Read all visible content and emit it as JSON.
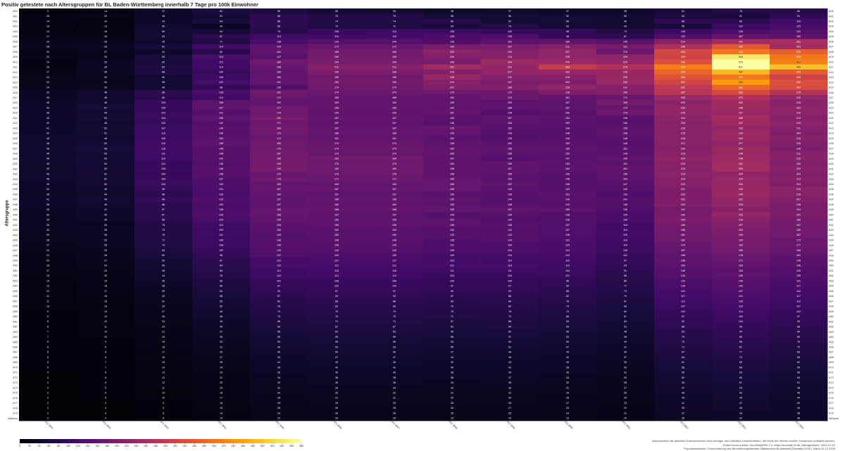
{
  "chart_data": {
    "type": "heatmap",
    "title": "Positiv getestete nach Altersgruppen für BL Baden-Württemberg innerhalb 7 Tage pro 100k Einwohner",
    "ylabel": "Altersgruppe",
    "xlabel": "",
    "columns": [
      "2021 W41",
      "2021 W42",
      "2021 W43",
      "2021 W44",
      "2021 W45",
      "2021 W46",
      "2021 W47",
      "2021 W48",
      "2021 W49",
      "2021 W50",
      "2021 W51",
      "2021 W52",
      "2022 W01",
      "2022 W02"
    ],
    "rows": [
      "A00",
      "A01",
      "A02",
      "A03",
      "A04",
      "A05",
      "A06",
      "A07",
      "A08",
      "A09",
      "A10",
      "A11",
      "A12",
      "A13",
      "A14",
      "A15",
      "A16",
      "A17",
      "A18",
      "A19",
      "A20",
      "A21",
      "A22",
      "A23",
      "A24",
      "A25",
      "A26",
      "A27",
      "A28",
      "A29",
      "A30",
      "A31",
      "A32",
      "A33",
      "A34",
      "A35",
      "A36",
      "A37",
      "A38",
      "A39",
      "A40",
      "A41",
      "A42",
      "A43",
      "A44",
      "A45",
      "A46",
      "A47",
      "A48",
      "A49",
      "A50",
      "A51",
      "A52",
      "A53",
      "A54",
      "A55",
      "A56",
      "A57",
      "A58",
      "A59",
      "A60",
      "A61",
      "A62",
      "A63",
      "A64",
      "A65",
      "A66",
      "A67",
      "A68",
      "A69",
      "A70",
      "A71",
      "A72",
      "A73",
      "A74",
      "A75",
      "A76",
      "A77",
      "A78",
      "A79",
      "A80plus"
    ],
    "values": [
      [
        9,
        14,
        37,
        62,
        65,
        55,
        49,
        38,
        47,
        37,
        38,
        61,
        76,
        80
      ],
      [
        18,
        22,
        38,
        51,
        86,
        75,
        75,
        56,
        56,
        52,
        55,
        64,
        61,
        91
      ],
      [
        14,
        14,
        43,
        64,
        88,
        74,
        74,
        80,
        52,
        56,
        46,
        88,
        89,
        116
      ],
      [
        16,
        13,
        50,
        34,
        89,
        70,
        70,
        63,
        74,
        53,
        49,
        58,
        107,
        125
      ],
      [
        13,
        16,
        50,
        54,
        79,
        106,
        113,
        108,
        100,
        96,
        74,
        108,
        125,
        141
      ],
      [
        17,
        16,
        53,
        87,
        112,
        115,
        115,
        128,
        135,
        98,
        87,
        132,
        167,
        155
      ],
      [
        24,
        26,
        45,
        77,
        128,
        144,
        144,
        136,
        151,
        160,
        145,
        214,
        251,
        261
      ],
      [
        28,
        33,
        61,
        114,
        154,
        172,
        172,
        194,
        197,
        211,
        191,
        266,
        355,
        253
      ],
      [
        20,
        27,
        41,
        82,
        161,
        185,
        185,
        220,
        209,
        227,
        173,
        325,
        405,
        370
      ],
      [
        22,
        25,
        59,
        124,
        147,
        190,
        190,
        206,
        214,
        228,
        225,
        319,
        546,
        403
      ],
      [
        14,
        33,
        60,
        113,
        180,
        194,
        194,
        196,
        244,
        240,
        233,
        345,
        579,
        417
      ],
      [
        16,
        34,
        64,
        114,
        168,
        211,
        211,
        251,
        231,
        303,
        274,
        413,
        621,
        495
      ],
      [
        17,
        35,
        68,
        100,
        160,
        199,
        199,
        213,
        227,
        233,
        239,
        378,
        487,
        364
      ],
      [
        24,
        30,
        50,
        106,
        160,
        180,
        180,
        235,
        211,
        215,
        239,
        349,
        401,
        318
      ],
      [
        24,
        30,
        55,
        122,
        161,
        190,
        190,
        213,
        197,
        202,
        240,
        321,
        454,
        342
      ],
      [
        24,
        30,
        49,
        98,
        139,
        179,
        179,
        207,
        208,
        229,
        211,
        292,
        381,
        337
      ],
      [
        34,
        48,
        88,
        128,
        181,
        174,
        174,
        179,
        179,
        198,
        209,
        287,
        332,
        279
      ],
      [
        35,
        48,
        82,
        113,
        170,
        165,
        165,
        162,
        174,
        161,
        171,
        238,
        270,
        232
      ],
      [
        36,
        46,
        103,
        155,
        162,
        163,
        163,
        159,
        153,
        157,
        189,
        220,
        250,
        216
      ],
      [
        43,
        57,
        100,
        157,
        177,
        166,
        166,
        160,
        158,
        157,
        173,
        233,
        248,
        223
      ],
      [
        38,
        49,
        101,
        141,
        179,
        159,
        159,
        167,
        139,
        150,
        179,
        229,
        237,
        219
      ],
      [
        43,
        53,
        104,
        156,
        191,
        167,
        167,
        153,
        157,
        154,
        146,
        224,
        256,
        213
      ],
      [
        42,
        48,
        102,
        141,
        171,
        157,
        157,
        146,
        154,
        153,
        146,
        216,
        247,
        219
      ],
      [
        41,
        53,
        107,
        149,
        184,
        167,
        167,
        170,
        150,
        146,
        155,
        218,
        233,
        211
      ],
      [
        42,
        51,
        110,
        146,
        179,
        166,
        166,
        159,
        143,
        148,
        158,
        215,
        240,
        204
      ],
      [
        46,
        48,
        109,
        152,
        172,
        161,
        161,
        152,
        139,
        146,
        148,
        218,
        244,
        215
      ],
      [
        45,
        53,
        115,
        155,
        180,
        170,
        170,
        156,
        151,
        152,
        148,
        217,
        227,
        205
      ],
      [
        48,
        58,
        118,
        148,
        176,
        174,
        174,
        162,
        156,
        155,
        151,
        209,
        244,
        196
      ],
      [
        45,
        53,
        111,
        148,
        187,
        170,
        170,
        165,
        155,
        152,
        149,
        218,
        238,
        211
      ],
      [
        48,
        53,
        110,
        142,
        186,
        183,
        183,
        157,
        144,
        147,
        160,
        224,
        246,
        216
      ],
      [
        45,
        54,
        101,
        138,
        190,
        176,
        176,
        159,
        159,
        153,
        151,
        218,
        251,
        205
      ],
      [
        43,
        53,
        105,
        146,
        190,
        180,
        180,
        158,
        157,
        154,
        162,
        215,
        254,
        215
      ],
      [
        45,
        51,
        100,
        148,
        170,
        176,
        176,
        158,
        155,
        146,
        156,
        219,
        229,
        204
      ],
      [
        48,
        51,
        103,
        137,
        178,
        171,
        171,
        165,
        150,
        148,
        153,
        213,
        234,
        213
      ],
      [
        39,
        50,
        104,
        132,
        163,
        163,
        163,
        166,
        157,
        145,
        147,
        213,
        234,
        203
      ],
      [
        42,
        46,
        95,
        131,
        167,
        167,
        167,
        166,
        149,
        143,
        140,
        201,
        239,
        219
      ],
      [
        36,
        44,
        88,
        126,
        160,
        157,
        157,
        150,
        146,
        151,
        133,
        203,
        240,
        215
      ],
      [
        41,
        49,
        98,
        133,
        157,
        166,
        166,
        155,
        144,
        149,
        141,
        202,
        232,
        207
      ],
      [
        38,
        45,
        88,
        130,
        157,
        162,
        162,
        153,
        148,
        142,
        138,
        204,
        226,
        198
      ],
      [
        35,
        41,
        87,
        128,
        165,
        168,
        168,
        159,
        157,
        155,
        135,
        191,
        213,
        194
      ],
      [
        32,
        40,
        87,
        133,
        165,
        157,
        157,
        144,
        145,
        138,
        129,
        192,
        233,
        201
      ],
      [
        34,
        36,
        86,
        124,
        159,
        155,
        155,
        151,
        139,
        138,
        126,
        199,
        216,
        188
      ],
      [
        30,
        34,
        75,
        114,
        153,
        158,
        158,
        155,
        145,
        137,
        118,
        189,
        207,
        187
      ],
      [
        33,
        35,
        73,
        109,
        153,
        150,
        150,
        140,
        141,
        137,
        113,
        186,
        203,
        186
      ],
      [
        30,
        35,
        76,
        111,
        143,
        152,
        152,
        143,
        143,
        136,
        120,
        181,
        195,
        187
      ],
      [
        28,
        33,
        71,
        108,
        148,
        148,
        148,
        135,
        144,
        131,
        114,
        181,
        193,
        173
      ],
      [
        27,
        33,
        70,
        108,
        146,
        145,
        145,
        131,
        129,
        125,
        110,
        170,
        193,
        177
      ],
      [
        24,
        29,
        64,
        102,
        139,
        140,
        140,
        135,
        134,
        124,
        105,
        167,
        185,
        168
      ],
      [
        21,
        28,
        60,
        96,
        137,
        132,
        132,
        120,
        119,
        122,
        101,
        156,
        176,
        161
      ],
      [
        20,
        27,
        52,
        87,
        122,
        127,
        127,
        123,
        114,
        115,
        97,
        158,
        171,
        149
      ],
      [
        18,
        24,
        50,
        84,
        120,
        121,
        121,
        121,
        119,
        110,
        93,
        153,
        163,
        146
      ],
      [
        17,
        23,
        48,
        80,
        112,
        118,
        118,
        111,
        111,
        104,
        91,
        148,
        153,
        139
      ],
      [
        15,
        20,
        44,
        76,
        110,
        114,
        114,
        104,
        104,
        101,
        86,
        144,
        156,
        138
      ],
      [
        14,
        19,
        40,
        69,
        101,
        106,
        106,
        100,
        100,
        96,
        80,
        132,
        146,
        131
      ],
      [
        13,
        18,
        38,
        66,
        97,
        102,
        102,
        97,
        97,
        90,
        77,
        128,
        142,
        127
      ],
      [
        12,
        17,
        35,
        62,
        92,
        97,
        97,
        92,
        92,
        86,
        74,
        121,
        137,
        122
      ],
      [
        11,
        16,
        33,
        58,
        87,
        93,
        93,
        87,
        88,
        82,
        70,
        117,
        131,
        117
      ],
      [
        11,
        15,
        31,
        55,
        82,
        88,
        88,
        83,
        84,
        78,
        67,
        112,
        125,
        112
      ],
      [
        10,
        14,
        29,
        52,
        78,
        83,
        83,
        79,
        80,
        74,
        63,
        107,
        120,
        107
      ],
      [
        9,
        13,
        27,
        48,
        74,
        79,
        79,
        75,
        76,
        70,
        60,
        102,
        114,
        102
      ],
      [
        9,
        13,
        26,
        46,
        70,
        75,
        75,
        71,
        72,
        66,
        57,
        97,
        109,
        97
      ],
      [
        8,
        12,
        24,
        43,
        66,
        71,
        71,
        67,
        68,
        63,
        54,
        92,
        104,
        93
      ],
      [
        8,
        11,
        23,
        40,
        62,
        67,
        67,
        63,
        64,
        59,
        51,
        88,
        99,
        88
      ],
      [
        7,
        10,
        21,
        37,
        58,
        63,
        63,
        59,
        60,
        56,
        48,
        83,
        94,
        84
      ],
      [
        7,
        10,
        20,
        35,
        55,
        59,
        59,
        56,
        57,
        53,
        46,
        79,
        89,
        80
      ],
      [
        6,
        9,
        19,
        33,
        52,
        56,
        56,
        53,
        54,
        50,
        43,
        75,
        85,
        76
      ],
      [
        6,
        9,
        18,
        31,
        49,
        53,
        53,
        50,
        51,
        47,
        41,
        71,
        81,
        72
      ],
      [
        6,
        8,
        17,
        29,
        46,
        50,
        50,
        47,
        48,
        45,
        39,
        67,
        77,
        68
      ],
      [
        5,
        8,
        16,
        27,
        43,
        47,
        47,
        44,
        45,
        42,
        37,
        64,
        73,
        65
      ],
      [
        5,
        7,
        15,
        26,
        41,
        45,
        45,
        42,
        43,
        40,
        35,
        61,
        69,
        62
      ],
      [
        5,
        7,
        14,
        24,
        39,
        42,
        42,
        40,
        41,
        38,
        33,
        58,
        66,
        59
      ],
      [
        4,
        6,
        13,
        23,
        36,
        40,
        40,
        38,
        39,
        36,
        31,
        55,
        63,
        56
      ],
      [
        4,
        6,
        12,
        21,
        34,
        38,
        38,
        36,
        37,
        34,
        30,
        52,
        60,
        53
      ],
      [
        4,
        6,
        12,
        20,
        32,
        36,
        36,
        34,
        35,
        32,
        28,
        49,
        57,
        51
      ],
      [
        4,
        5,
        11,
        19,
        31,
        34,
        34,
        32,
        33,
        31,
        27,
        47,
        54,
        48
      ],
      [
        3,
        5,
        10,
        18,
        29,
        32,
        32,
        31,
        31,
        29,
        26,
        45,
        52,
        46
      ],
      [
        3,
        5,
        10,
        17,
        28,
        31,
        31,
        29,
        30,
        28,
        24,
        43,
        49,
        44
      ],
      [
        3,
        4,
        9,
        16,
        26,
        29,
        29,
        28,
        28,
        27,
        23,
        41,
        47,
        42
      ],
      [
        3,
        4,
        9,
        15,
        25,
        28,
        28,
        26,
        27,
        25,
        22,
        39,
        45,
        40
      ],
      [
        3,
        4,
        8,
        14,
        24,
        26,
        26,
        25,
        26,
        24,
        21,
        37,
        43,
        38
      ],
      [
        3,
        4,
        8,
        14,
        23,
        25,
        25,
        24,
        24,
        23,
        20,
        35,
        41,
        36
      ]
    ],
    "colorscale": {
      "name": "inferno",
      "min": 0,
      "max": 580,
      "ticks": [
        0,
        20,
        40,
        60,
        80,
        100,
        120,
        140,
        160,
        180,
        200,
        220,
        240,
        260,
        280,
        300,
        320,
        340,
        360,
        380,
        400,
        420,
        440,
        460,
        480,
        500,
        520,
        540,
        560,
        580
      ]
    }
  },
  "footer": {
    "line1": "Insbesondere die aktuellen Kalenderwoche sind niedriger und enthalten Unsicherheiten, die letzte der Woche können Tendenzen aufhalbe werden.",
    "line2": "Robert Koch-Institut: SurvStat@RKI 2.0, https://survstat.rki.de, Abfragedatum: 2022-01-13",
    "line3": "Populationsdaten: Fortschreibung des Bevölkerungsstandes Statistisches Bundesamt (Destatis) 2020 | Stand 31.12.2020"
  }
}
